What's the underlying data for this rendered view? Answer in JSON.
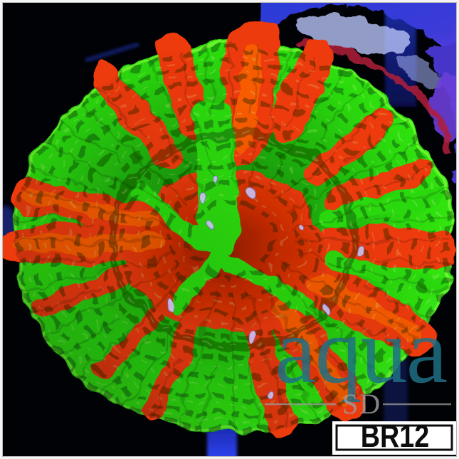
{
  "watermark": {
    "main": "aqua",
    "sub": "SD"
  },
  "label": {
    "code": "BR12"
  },
  "colors": {
    "frame": "#f4f4f4",
    "background": "#010205",
    "coral_green": "#2bd90b",
    "coral_green_bright": "#4df51e",
    "coral_green_dark": "#0e6f06",
    "coral_red": "#ee3a08",
    "coral_orange": "#ff7700",
    "coral_center_red": "#c62a04",
    "tentacle_lavender": "#c9c2f2",
    "rock_blue": "#2a3bd6",
    "rock_purple": "#6a3fe0",
    "rock_ice": "#b7c3f7",
    "post_blue": "#1b2bb4",
    "watermark_teal": "#1e7086",
    "watermark_gray": "#9b9b9b",
    "label_bg": "#ffffff",
    "label_text": "#0d0d0d"
  }
}
